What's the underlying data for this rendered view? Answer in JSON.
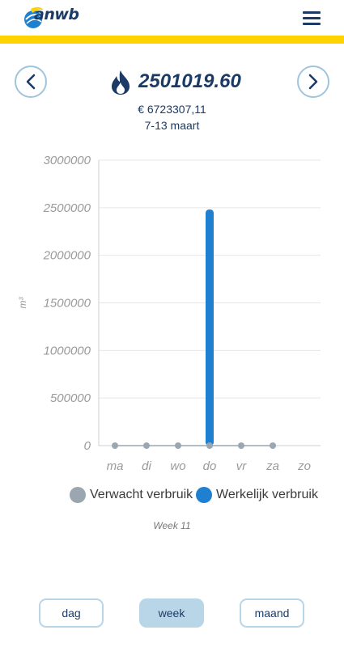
{
  "header": {
    "logo_text": "anwb",
    "brand_color": "#1b3a66",
    "accent_color": "#ffd200"
  },
  "summary": {
    "reading": "2501019.60",
    "cost": "€ 6723307,11",
    "period": "7-13 maart"
  },
  "chart_data": {
    "type": "bar",
    "categories": [
      "ma",
      "di",
      "wo",
      "do",
      "vr",
      "za",
      "zo"
    ],
    "ylabel": "m³",
    "ylim": [
      0,
      3000000
    ],
    "yticks": [
      0,
      500000,
      1000000,
      1500000,
      2000000,
      2500000,
      3000000
    ],
    "ytick_labels": [
      "0",
      "500000",
      "1000000",
      "1500000",
      "2000000",
      "2500000",
      "3000000"
    ],
    "grid": true,
    "series": [
      {
        "name": "Verwacht verbruik",
        "color": "#9aa7b0",
        "values": [
          0,
          0,
          0,
          0,
          0,
          0,
          null
        ]
      },
      {
        "name": "Werkelijk verbruik",
        "color": "#1f7fd1",
        "values": [
          null,
          null,
          null,
          2480000,
          null,
          null,
          null
        ]
      }
    ]
  },
  "legend": {
    "expected": "Verwacht verbruik",
    "actual": "Werkelijk verbruik"
  },
  "week_label": "Week 11",
  "period_buttons": {
    "day": "dag",
    "week": "week",
    "month": "maand",
    "selected": "week"
  }
}
